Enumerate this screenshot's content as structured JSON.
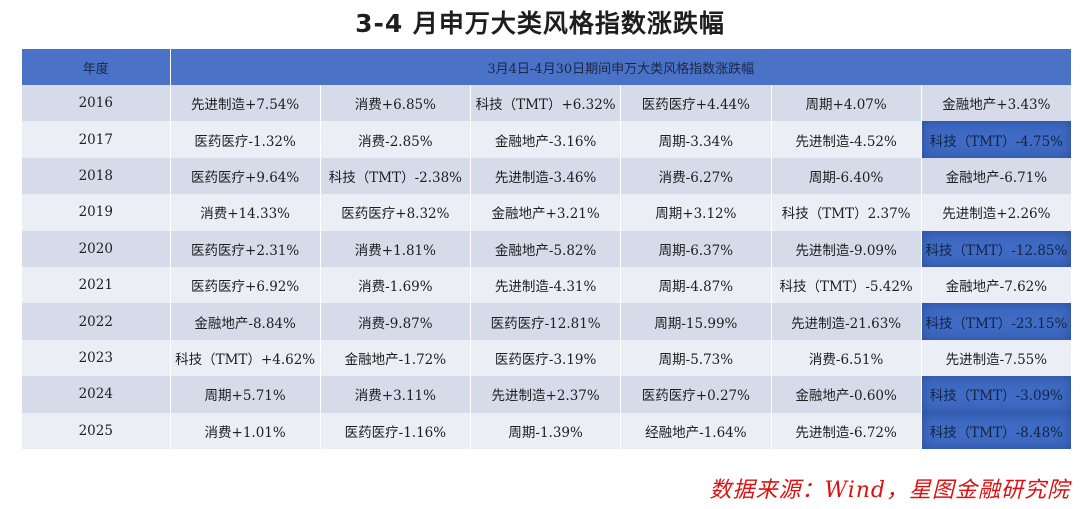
{
  "title": "3-4 月申万大类风格指数涨跌幅",
  "table": {
    "year_header": "年度",
    "span_header": "3月4日-4月30日期间申万大类风格指数涨跌幅",
    "highlight_color": "#3f6bc4",
    "rows": [
      {
        "year": "2016",
        "cells": [
          "先进制造+7.54%",
          "消费+6.85%",
          "科技（TMT）+6.32%",
          "医药医疗+4.44%",
          "周期+4.07%",
          "金融地产+3.43%"
        ],
        "highlight_last": false
      },
      {
        "year": "2017",
        "cells": [
          "医药医疗-1.32%",
          "消费-2.85%",
          "金融地产-3.16%",
          "周期-3.34%",
          "先进制造-4.52%",
          "科技（TMT）-4.75%"
        ],
        "highlight_last": true
      },
      {
        "year": "2018",
        "cells": [
          "医药医疗+9.64%",
          "科技（TMT）-2.38%",
          "先进制造-3.46%",
          "消费-6.27%",
          "周期-6.40%",
          "金融地产-6.71%"
        ],
        "highlight_last": false
      },
      {
        "year": "2019",
        "cells": [
          "消费+14.33%",
          "医药医疗+8.32%",
          "金融地产+3.21%",
          "周期+3.12%",
          "科技（TMT）2.37%",
          "先进制造+2.26%"
        ],
        "highlight_last": false
      },
      {
        "year": "2020",
        "cells": [
          "医药医疗+2.31%",
          "消费+1.81%",
          "金融地产-5.82%",
          "周期-6.37%",
          "先进制造-9.09%",
          "科技（TMT）-12.85%"
        ],
        "highlight_last": true
      },
      {
        "year": "2021",
        "cells": [
          "医药医疗+6.92%",
          "消费-1.69%",
          "先进制造-4.31%",
          "周期-4.87%",
          "科技（TMT）-5.42%",
          "金融地产-7.62%"
        ],
        "highlight_last": false
      },
      {
        "year": "2022",
        "cells": [
          "金融地产-8.84%",
          "消费-9.87%",
          "医药医疗-12.81%",
          "周期-15.99%",
          "先进制造-21.63%",
          "科技（TMT）-23.15%"
        ],
        "highlight_last": true
      },
      {
        "year": "2023",
        "cells": [
          "科技（TMT）+4.62%",
          "金融地产-1.72%",
          "医药医疗-3.19%",
          "周期-5.73%",
          "消费-6.51%",
          "先进制造-7.55%"
        ],
        "highlight_last": false
      },
      {
        "year": "2024",
        "cells": [
          "周期+5.71%",
          "消费+3.11%",
          "先进制造+2.37%",
          "医药医疗+0.27%",
          "金融地产-0.60%",
          "科技（TMT）-3.09%"
        ],
        "highlight_last": true
      },
      {
        "year": "2025",
        "cells": [
          "消费+1.01%",
          "医药医疗-1.16%",
          "周期-1.39%",
          "经融地产-1.64%",
          "先进制造-6.72%",
          "科技（TMT）-8.48%"
        ],
        "highlight_last": true
      }
    ]
  },
  "source": "数据来源：Wind，星图金融研究院"
}
